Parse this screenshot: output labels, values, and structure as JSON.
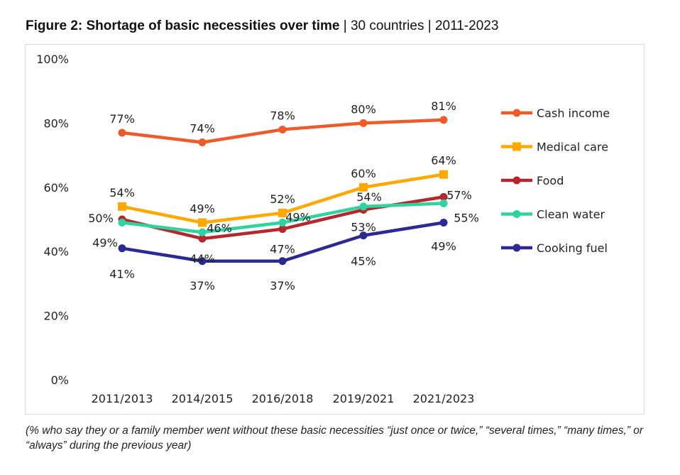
{
  "title": {
    "bold": "Figure 2: Shortage of basic necessities over time",
    "sep1": " | ",
    "part2": "30 countries",
    "sep2": " | ",
    "part3": "2011-2023"
  },
  "footnote": "(% who say they or a family member went without these basic necessities “just once or twice,” “several times,” “many times,” or “always” during the previous year)",
  "chart_data": {
    "type": "line",
    "categories": [
      "2011/2013",
      "2014/2015",
      "2016/2018",
      "2019/2021",
      "2021/2023"
    ],
    "ylim": [
      0,
      100
    ],
    "yticks": [
      "0%",
      "20%",
      "40%",
      "60%",
      "80%",
      "100%"
    ],
    "grid": false,
    "legend": "right",
    "series": [
      {
        "name": "Cash income",
        "color": "#f05a28",
        "marker": "circle",
        "values": [
          77,
          74,
          78,
          80,
          81
        ],
        "labels": [
          "77%",
          "74%",
          "78%",
          "80%",
          "81%"
        ]
      },
      {
        "name": "Medical care",
        "color": "#ffa800",
        "marker": "square",
        "values": [
          54,
          49,
          52,
          60,
          64
        ],
        "labels": [
          "54%",
          "49%",
          "52%",
          "60%",
          "64%"
        ]
      },
      {
        "name": "Food",
        "color": "#b5272d",
        "marker": "circle",
        "values": [
          50,
          44,
          47,
          53,
          57
        ],
        "labels": [
          "50%",
          "44%",
          "47%",
          "53%",
          "57%"
        ]
      },
      {
        "name": "Clean water",
        "color": "#2dd4a0",
        "marker": "circle",
        "values": [
          49,
          46,
          49,
          54,
          55
        ],
        "labels": [
          "49%",
          "46%",
          "49%",
          "54%",
          "55%"
        ]
      },
      {
        "name": "Cooking fuel",
        "color": "#2b2a94",
        "marker": "circle",
        "values": [
          41,
          37,
          37,
          45,
          49
        ],
        "labels": [
          "41%",
          "37%",
          "37%",
          "45%",
          "49%"
        ]
      }
    ]
  }
}
